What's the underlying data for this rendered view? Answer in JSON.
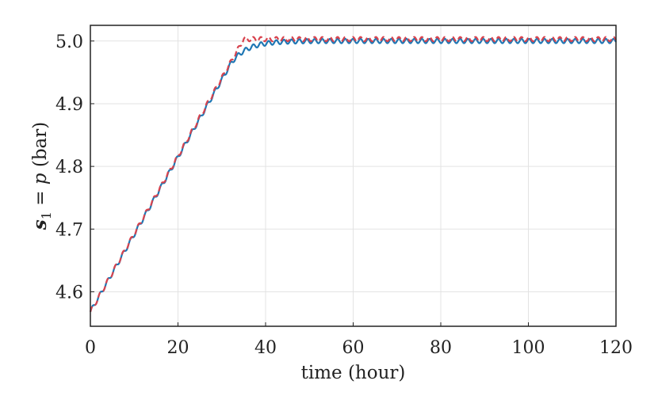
{
  "chart_data": {
    "type": "line",
    "xlabel": "time (hour)",
    "ylabel": {
      "bold_symbol": "s",
      "subscript": "1",
      "equals": " = ",
      "var": "p",
      "unit": " (bar)"
    },
    "xlim": [
      0,
      120
    ],
    "ylim": [
      4.545,
      5.025
    ],
    "xticks": [
      0,
      20,
      40,
      60,
      80,
      100,
      120
    ],
    "yticks": [
      4.6,
      4.7,
      4.8,
      4.9,
      5.0
    ],
    "xtick_labels": [
      "0",
      "20",
      "40",
      "60",
      "80",
      "100",
      "120"
    ],
    "ytick_labels": [
      "4.6",
      "4.7",
      "4.8",
      "4.9",
      "5.0"
    ],
    "grid": true,
    "legend": "none",
    "series": [
      {
        "style": "dashed",
        "color": "#d8434e",
        "ramp": {
          "x_start": 0,
          "y_start": 4.568,
          "x_end": 35,
          "y_end": 5.003
        },
        "plateau": 5.003,
        "oscillation": {
          "period_hours": 1.75,
          "amplitude": 0.0035
        },
        "x": [
          0,
          5,
          10,
          15,
          20,
          25,
          30,
          35,
          40,
          50,
          60,
          70,
          80,
          90,
          100,
          110,
          120
        ],
        "y": [
          4.568,
          4.63,
          4.692,
          4.754,
          4.817,
          4.879,
          4.941,
          5.001,
          5.003,
          5.003,
          5.003,
          5.003,
          5.003,
          5.003,
          5.003,
          5.003,
          5.003
        ]
      },
      {
        "style": "solid",
        "color": "#1f77b4",
        "ramp": {
          "x_start": 0,
          "y_start": 4.568,
          "x_end": 32,
          "y_end": 4.963
        },
        "settle": {
          "x_end": 45,
          "tau_hours": 3.6
        },
        "plateau": 5.0,
        "oscillation": {
          "period_hours": 1.75,
          "amplitude": 0.0035
        },
        "x": [
          0,
          5,
          10,
          15,
          20,
          25,
          30,
          35,
          40,
          50,
          60,
          70,
          80,
          90,
          100,
          110,
          120
        ],
        "y": [
          4.568,
          4.63,
          4.692,
          4.753,
          4.815,
          4.877,
          4.938,
          4.978,
          4.992,
          5.0,
          5.0,
          5.0,
          5.0,
          5.0,
          5.0,
          5.0,
          5.0
        ]
      }
    ]
  }
}
